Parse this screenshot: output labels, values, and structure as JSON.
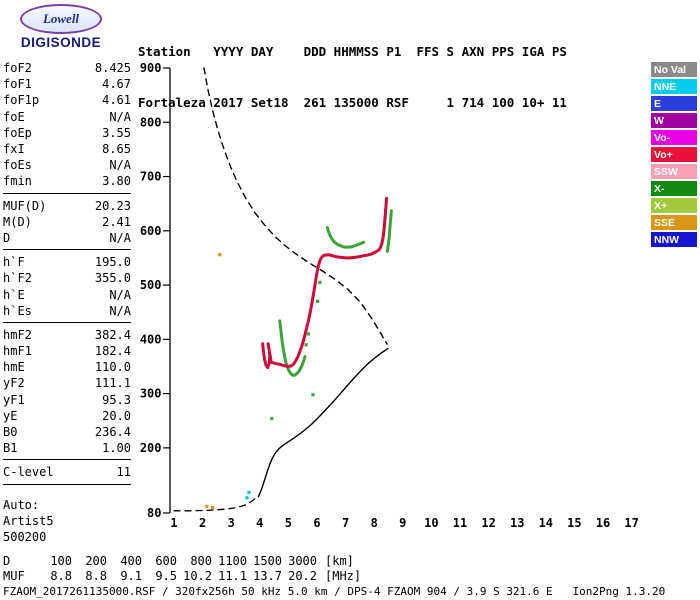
{
  "logo": {
    "name": "Lowell",
    "product": "DIGISONDE"
  },
  "header": {
    "line1": "Station   YYYY DAY    DDD HHMMSS P1  FFS S AXN PPS IGA PS",
    "line2": "Fortaleza 2017 Set18  261 135000 RSF     1 714 100 10+ 11"
  },
  "params": {
    "groups": [
      [
        [
          "foF2",
          "8.425"
        ],
        [
          "foF1",
          "4.67"
        ],
        [
          "foF1p",
          "4.61"
        ],
        [
          "foE",
          "N/A"
        ],
        [
          "foEp",
          "3.55"
        ],
        [
          "fxI",
          "8.65"
        ],
        [
          "foEs",
          "N/A"
        ],
        [
          "fmin",
          "3.80"
        ]
      ],
      [
        [
          "MUF(D)",
          "20.23"
        ],
        [
          "M(D)",
          "2.41"
        ],
        [
          "D",
          "N/A"
        ]
      ],
      [
        [
          "h`F",
          "195.0"
        ],
        [
          "h`F2",
          "355.0"
        ],
        [
          "h`E",
          "N/A"
        ],
        [
          "h`Es",
          "N/A"
        ]
      ],
      [
        [
          "hmF2",
          "382.4"
        ],
        [
          "hmF1",
          "182.4"
        ],
        [
          "hmE",
          "110.0"
        ],
        [
          "yF2",
          "111.1"
        ],
        [
          "yF1",
          "95.3"
        ],
        [
          "yE",
          "20.0"
        ],
        [
          "B0",
          "236.4"
        ],
        [
          "B1",
          "1.00"
        ]
      ],
      [
        [
          "C-level",
          "11"
        ]
      ]
    ],
    "footer_lines": [
      "Auto:",
      "Artist5",
      "500200"
    ]
  },
  "legend": {
    "items": [
      {
        "label": "No Val",
        "color": "#8a8a8a"
      },
      {
        "label": "NNE",
        "color": "#00ccee"
      },
      {
        "label": "E",
        "color": "#2b3ede"
      },
      {
        "label": "W",
        "color": "#a100a1"
      },
      {
        "label": "Vo-",
        "color": "#e800e8"
      },
      {
        "label": "Vo+",
        "color": "#e8123c"
      },
      {
        "label": "SSW",
        "color": "#f8a0b4"
      },
      {
        "label": "X-",
        "color": "#128a12"
      },
      {
        "label": "X+",
        "color": "#a2c83c"
      },
      {
        "label": "SSE",
        "color": "#d89612"
      },
      {
        "label": "NNW",
        "color": "#1414d2"
      }
    ]
  },
  "dmuf_table": {
    "rows": [
      {
        "label": "D",
        "values": [
          "100",
          "200",
          "400",
          "600",
          "800",
          "1100",
          "1500",
          "3000"
        ],
        "unit": "[km]"
      },
      {
        "label": "MUF",
        "values": [
          "8.8",
          "8.8",
          "9.1",
          "9.5",
          "10.2",
          "11.1",
          "13.7",
          "20.2"
        ],
        "unit": "[MHz]"
      }
    ]
  },
  "footer": "FZAOM_2017261135000.RSF / 320fx256h 50 kHz 5.0 km / DPS-4 FZAOM 904 / 3.9 S 321.6 E   Ion2Png 1.3.20",
  "chart_data": {
    "type": "scatter",
    "title": "Digisonde ionogram, Fortaleza 2017 day 261 13:50:00",
    "xlabel": "",
    "ylabel": "",
    "x_unit": "MHz",
    "y_unit": "km",
    "x_range": [
      1,
      17
    ],
    "y_range": [
      80,
      900
    ],
    "x_ticks": [
      1,
      2,
      3,
      4,
      5,
      6,
      7,
      8,
      9,
      10,
      11,
      12,
      13,
      14,
      15,
      16,
      17
    ],
    "y_ticks": [
      900,
      800,
      700,
      600,
      500,
      400,
      300,
      200,
      80
    ],
    "grid": false,
    "legend_position": "right",
    "series": [
      {
        "name": "muf-transmission-curve",
        "style": "dashed",
        "width": 1.4,
        "color": "#000000",
        "points": [
          [
            2.05,
            900
          ],
          [
            2.18,
            862
          ],
          [
            2.34,
            824
          ],
          [
            2.52,
            788
          ],
          [
            2.73,
            753
          ],
          [
            2.96,
            720
          ],
          [
            3.22,
            689
          ],
          [
            3.51,
            660
          ],
          [
            3.82,
            634
          ],
          [
            4.16,
            611
          ],
          [
            4.52,
            590
          ],
          [
            4.9,
            572
          ],
          [
            5.3,
            556
          ],
          [
            5.72,
            541
          ],
          [
            6.16,
            527
          ],
          [
            6.62,
            511
          ],
          [
            7.08,
            492
          ],
          [
            7.52,
            468
          ],
          [
            7.92,
            438
          ],
          [
            8.24,
            410
          ],
          [
            8.45,
            391
          ]
        ]
      },
      {
        "name": "profile-below-fmin",
        "style": "dashed",
        "width": 1.3,
        "color": "#000000",
        "points": [
          [
            1.0,
            84
          ],
          [
            1.6,
            84
          ],
          [
            2.2,
            85
          ],
          [
            2.8,
            87
          ],
          [
            3.2,
            90
          ],
          [
            3.5,
            95
          ],
          [
            3.7,
            101
          ],
          [
            3.85,
            107
          ],
          [
            3.95,
            110
          ]
        ]
      },
      {
        "name": "true-height-profile",
        "style": "line",
        "width": 1.4,
        "color": "#000000",
        "points": [
          [
            3.95,
            110
          ],
          [
            4.05,
            122
          ],
          [
            4.15,
            138
          ],
          [
            4.25,
            155
          ],
          [
            4.35,
            170
          ],
          [
            4.45,
            182
          ],
          [
            4.55,
            191
          ],
          [
            4.68,
            199
          ],
          [
            4.85,
            206
          ],
          [
            5.05,
            213
          ],
          [
            5.3,
            222
          ],
          [
            5.55,
            232
          ],
          [
            5.8,
            243
          ],
          [
            6.05,
            256
          ],
          [
            6.3,
            270
          ],
          [
            6.55,
            284
          ],
          [
            6.8,
            299
          ],
          [
            7.05,
            314
          ],
          [
            7.3,
            329
          ],
          [
            7.55,
            343
          ],
          [
            7.8,
            356
          ],
          [
            8.05,
            367
          ],
          [
            8.25,
            375
          ],
          [
            8.4,
            380
          ],
          [
            8.48,
            383
          ]
        ]
      },
      {
        "name": "x-mode-trace-lower",
        "style": "thick",
        "width": 3,
        "color": "#3aa33a",
        "points": [
          [
            4.7,
            434
          ],
          [
            4.73,
            420
          ],
          [
            4.76,
            406
          ],
          [
            4.79,
            393
          ],
          [
            4.83,
            380
          ],
          [
            4.87,
            368
          ],
          [
            4.91,
            358
          ],
          [
            4.96,
            349
          ],
          [
            5.02,
            342
          ],
          [
            5.08,
            337
          ],
          [
            5.15,
            334
          ],
          [
            5.22,
            334
          ],
          [
            5.3,
            337
          ],
          [
            5.38,
            342
          ],
          [
            5.45,
            349
          ],
          [
            5.52,
            358
          ],
          [
            5.58,
            368
          ]
        ]
      },
      {
        "name": "x-mode-trace-upper",
        "style": "thick",
        "width": 3,
        "color": "#3aa33a",
        "points": [
          [
            6.36,
            606
          ],
          [
            6.4,
            599
          ],
          [
            6.45,
            592
          ],
          [
            6.51,
            586
          ],
          [
            6.58,
            581
          ],
          [
            6.66,
            577
          ],
          [
            6.75,
            574
          ],
          [
            6.85,
            572
          ],
          [
            6.95,
            570
          ],
          [
            7.05,
            570
          ],
          [
            7.15,
            570
          ],
          [
            7.25,
            571
          ],
          [
            7.35,
            573
          ],
          [
            7.45,
            575
          ],
          [
            7.55,
            577
          ],
          [
            7.63,
            579
          ]
        ]
      },
      {
        "name": "x-mode-trace-top",
        "style": "thick",
        "width": 3,
        "color": "#3aa33a",
        "points": [
          [
            8.46,
            562
          ],
          [
            8.49,
            573
          ],
          [
            8.52,
            586
          ],
          [
            8.54,
            599
          ],
          [
            8.56,
            612
          ],
          [
            8.58,
            625
          ],
          [
            8.6,
            637
          ]
        ]
      },
      {
        "name": "o-mode-trace",
        "style": "thick",
        "width": 3,
        "color": "#cf0a3a",
        "points": [
          [
            4.1,
            392
          ],
          [
            4.13,
            376
          ],
          [
            4.17,
            362
          ],
          [
            4.22,
            352
          ],
          [
            4.28,
            348
          ],
          [
            4.33,
            356
          ],
          [
            4.35,
            370
          ],
          [
            4.32,
            382
          ],
          [
            4.29,
            392
          ],
          [
            4.4,
            358
          ],
          [
            4.5,
            356
          ],
          [
            4.6,
            355
          ],
          [
            4.7,
            354
          ],
          [
            4.8,
            352
          ],
          [
            4.9,
            351
          ],
          [
            5.0,
            350
          ],
          [
            5.1,
            351
          ],
          [
            5.18,
            354
          ],
          [
            5.25,
            360
          ],
          [
            5.32,
            367
          ],
          [
            5.4,
            377
          ],
          [
            5.48,
            389
          ],
          [
            5.55,
            402
          ],
          [
            5.62,
            417
          ],
          [
            5.7,
            434
          ],
          [
            5.78,
            454
          ],
          [
            5.85,
            475
          ],
          [
            5.92,
            497
          ],
          [
            5.98,
            517
          ],
          [
            6.04,
            533
          ],
          [
            6.1,
            545
          ],
          [
            6.17,
            552
          ],
          [
            6.25,
            555
          ],
          [
            6.4,
            556
          ],
          [
            6.55,
            554
          ],
          [
            6.7,
            552
          ],
          [
            6.85,
            551
          ],
          [
            7.0,
            550
          ],
          [
            7.15,
            550
          ],
          [
            7.3,
            551
          ],
          [
            7.45,
            552
          ],
          [
            7.6,
            554
          ],
          [
            7.75,
            555
          ],
          [
            7.9,
            557
          ],
          [
            8.05,
            561
          ],
          [
            8.15,
            564
          ],
          [
            8.22,
            569
          ],
          [
            8.27,
            577
          ],
          [
            8.31,
            588
          ],
          [
            8.34,
            600
          ],
          [
            8.36,
            612
          ],
          [
            8.38,
            625
          ],
          [
            8.4,
            638
          ],
          [
            8.42,
            650
          ],
          [
            8.43,
            660
          ]
        ]
      },
      {
        "name": "x-mode-specks",
        "style": "dots",
        "color": "#3aa33a",
        "points": [
          [
            4.42,
            254
          ],
          [
            5.86,
            298
          ],
          [
            6.02,
            470
          ],
          [
            6.1,
            505
          ],
          [
            5.62,
            390
          ],
          [
            5.7,
            410
          ]
        ]
      },
      {
        "name": "sse-specks",
        "style": "dots",
        "color": "#d89612",
        "points": [
          [
            2.6,
            556
          ],
          [
            2.15,
            92
          ],
          [
            2.35,
            90
          ]
        ]
      },
      {
        "name": "nne-specks",
        "style": "dots",
        "color": "#00c8dc",
        "points": [
          [
            3.55,
            108
          ],
          [
            3.62,
            118
          ]
        ]
      }
    ]
  }
}
